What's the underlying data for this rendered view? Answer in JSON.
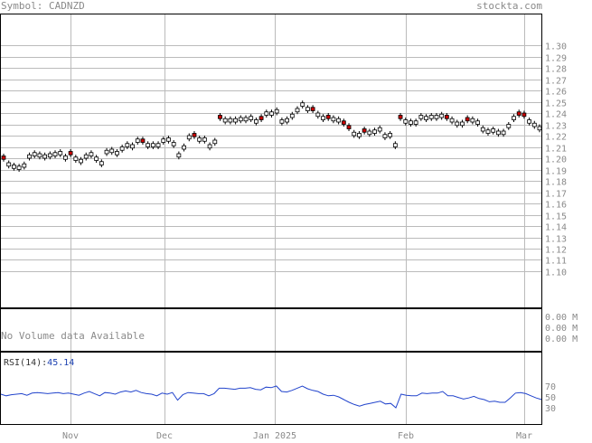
{
  "header": {
    "symbol_label": "Symbol:",
    "symbol": "CADNZD",
    "brand": "stockta.com"
  },
  "volume": {
    "message": "No Volume data Available",
    "tick_labels": [
      "0.00 M",
      "0.00 M",
      "0.00 M"
    ]
  },
  "rsi": {
    "label": "RSI(14):",
    "value": "45.14",
    "tick_labels": [
      "70",
      "50",
      "30"
    ],
    "line_color": "#2244cc"
  },
  "colors": {
    "down_candle": "#cc0000",
    "up_candle": "#ffffff",
    "grid": "#bbbbbb",
    "axis_text": "#8a8a8a"
  },
  "chart_data": [
    {
      "type": "candlestick",
      "title": "",
      "x_labels": [
        "Nov",
        "Dec",
        "Jan 2025",
        "Feb",
        "Mar"
      ],
      "y_ticks": [
        "1.30",
        "1.29",
        "1.28",
        "1.27",
        "1.26",
        "1.25",
        "1.24",
        "1.23",
        "1.22",
        "1.21",
        "1.20",
        "1.19",
        "1.18",
        "1.17",
        "1.16",
        "1.15",
        "1.14",
        "1.13",
        "1.12",
        "1.11",
        "1.10"
      ],
      "ylim": [
        1.1,
        1.3
      ],
      "grid": true,
      "closes": [
        1.199,
        1.196,
        1.194,
        1.193,
        1.195,
        1.203,
        1.205,
        1.204,
        1.203,
        1.204,
        1.205,
        1.206,
        1.202,
        1.203,
        1.201,
        1.199,
        1.203,
        1.205,
        1.201,
        1.197,
        1.207,
        1.208,
        1.206,
        1.21,
        1.213,
        1.212,
        1.217,
        1.214,
        1.213,
        1.213,
        1.213,
        1.217,
        1.218,
        1.214,
        1.204,
        1.211,
        1.22,
        1.219,
        1.218,
        1.218,
        1.212,
        1.216,
        1.235,
        1.235,
        1.235,
        1.235,
        1.236,
        1.236,
        1.237,
        1.234,
        1.234,
        1.241,
        1.241,
        1.243,
        1.234,
        1.235,
        1.239,
        1.244,
        1.249,
        1.245,
        1.242,
        1.24,
        1.237,
        1.235,
        1.236,
        1.235,
        1.23,
        1.226,
        1.223,
        1.222,
        1.223,
        1.224,
        1.225,
        1.227,
        1.221,
        1.222,
        1.213,
        1.235,
        1.234,
        1.233,
        1.233,
        1.238,
        1.237,
        1.238,
        1.238,
        1.239,
        1.235,
        1.235,
        1.232,
        1.232,
        1.233,
        1.235,
        1.233,
        1.227,
        1.225,
        1.226,
        1.224,
        1.224,
        1.23,
        1.237,
        1.238,
        1.237,
        1.234,
        1.231,
        1.228
      ],
      "down_days": [
        0,
        13,
        27,
        37,
        42,
        50,
        60,
        63,
        66,
        67,
        70,
        77,
        86,
        90,
        100,
        101
      ]
    },
    {
      "type": "line",
      "name": "RSI(14)",
      "ylim": [
        0,
        100
      ],
      "y_ticks": [
        70,
        50,
        30
      ],
      "values": [
        55,
        52,
        54,
        55,
        56,
        53,
        57,
        58,
        57,
        56,
        57,
        58,
        56,
        57,
        55,
        53,
        57,
        60,
        56,
        52,
        58,
        57,
        55,
        59,
        61,
        59,
        62,
        58,
        56,
        55,
        52,
        57,
        55,
        58,
        44,
        54,
        58,
        57,
        56,
        56,
        52,
        56,
        66,
        66,
        65,
        64,
        66,
        66,
        67,
        64,
        63,
        68,
        67,
        70,
        60,
        59,
        62,
        66,
        70,
        65,
        62,
        60,
        55,
        52,
        53,
        50,
        45,
        40,
        36,
        33,
        36,
        38,
        40,
        42,
        37,
        38,
        30,
        55,
        53,
        52,
        52,
        57,
        56,
        57,
        57,
        60,
        52,
        52,
        49,
        46,
        48,
        51,
        47,
        45,
        41,
        42,
        40,
        40,
        48,
        57,
        58,
        56,
        52,
        48,
        45.14
      ]
    }
  ]
}
